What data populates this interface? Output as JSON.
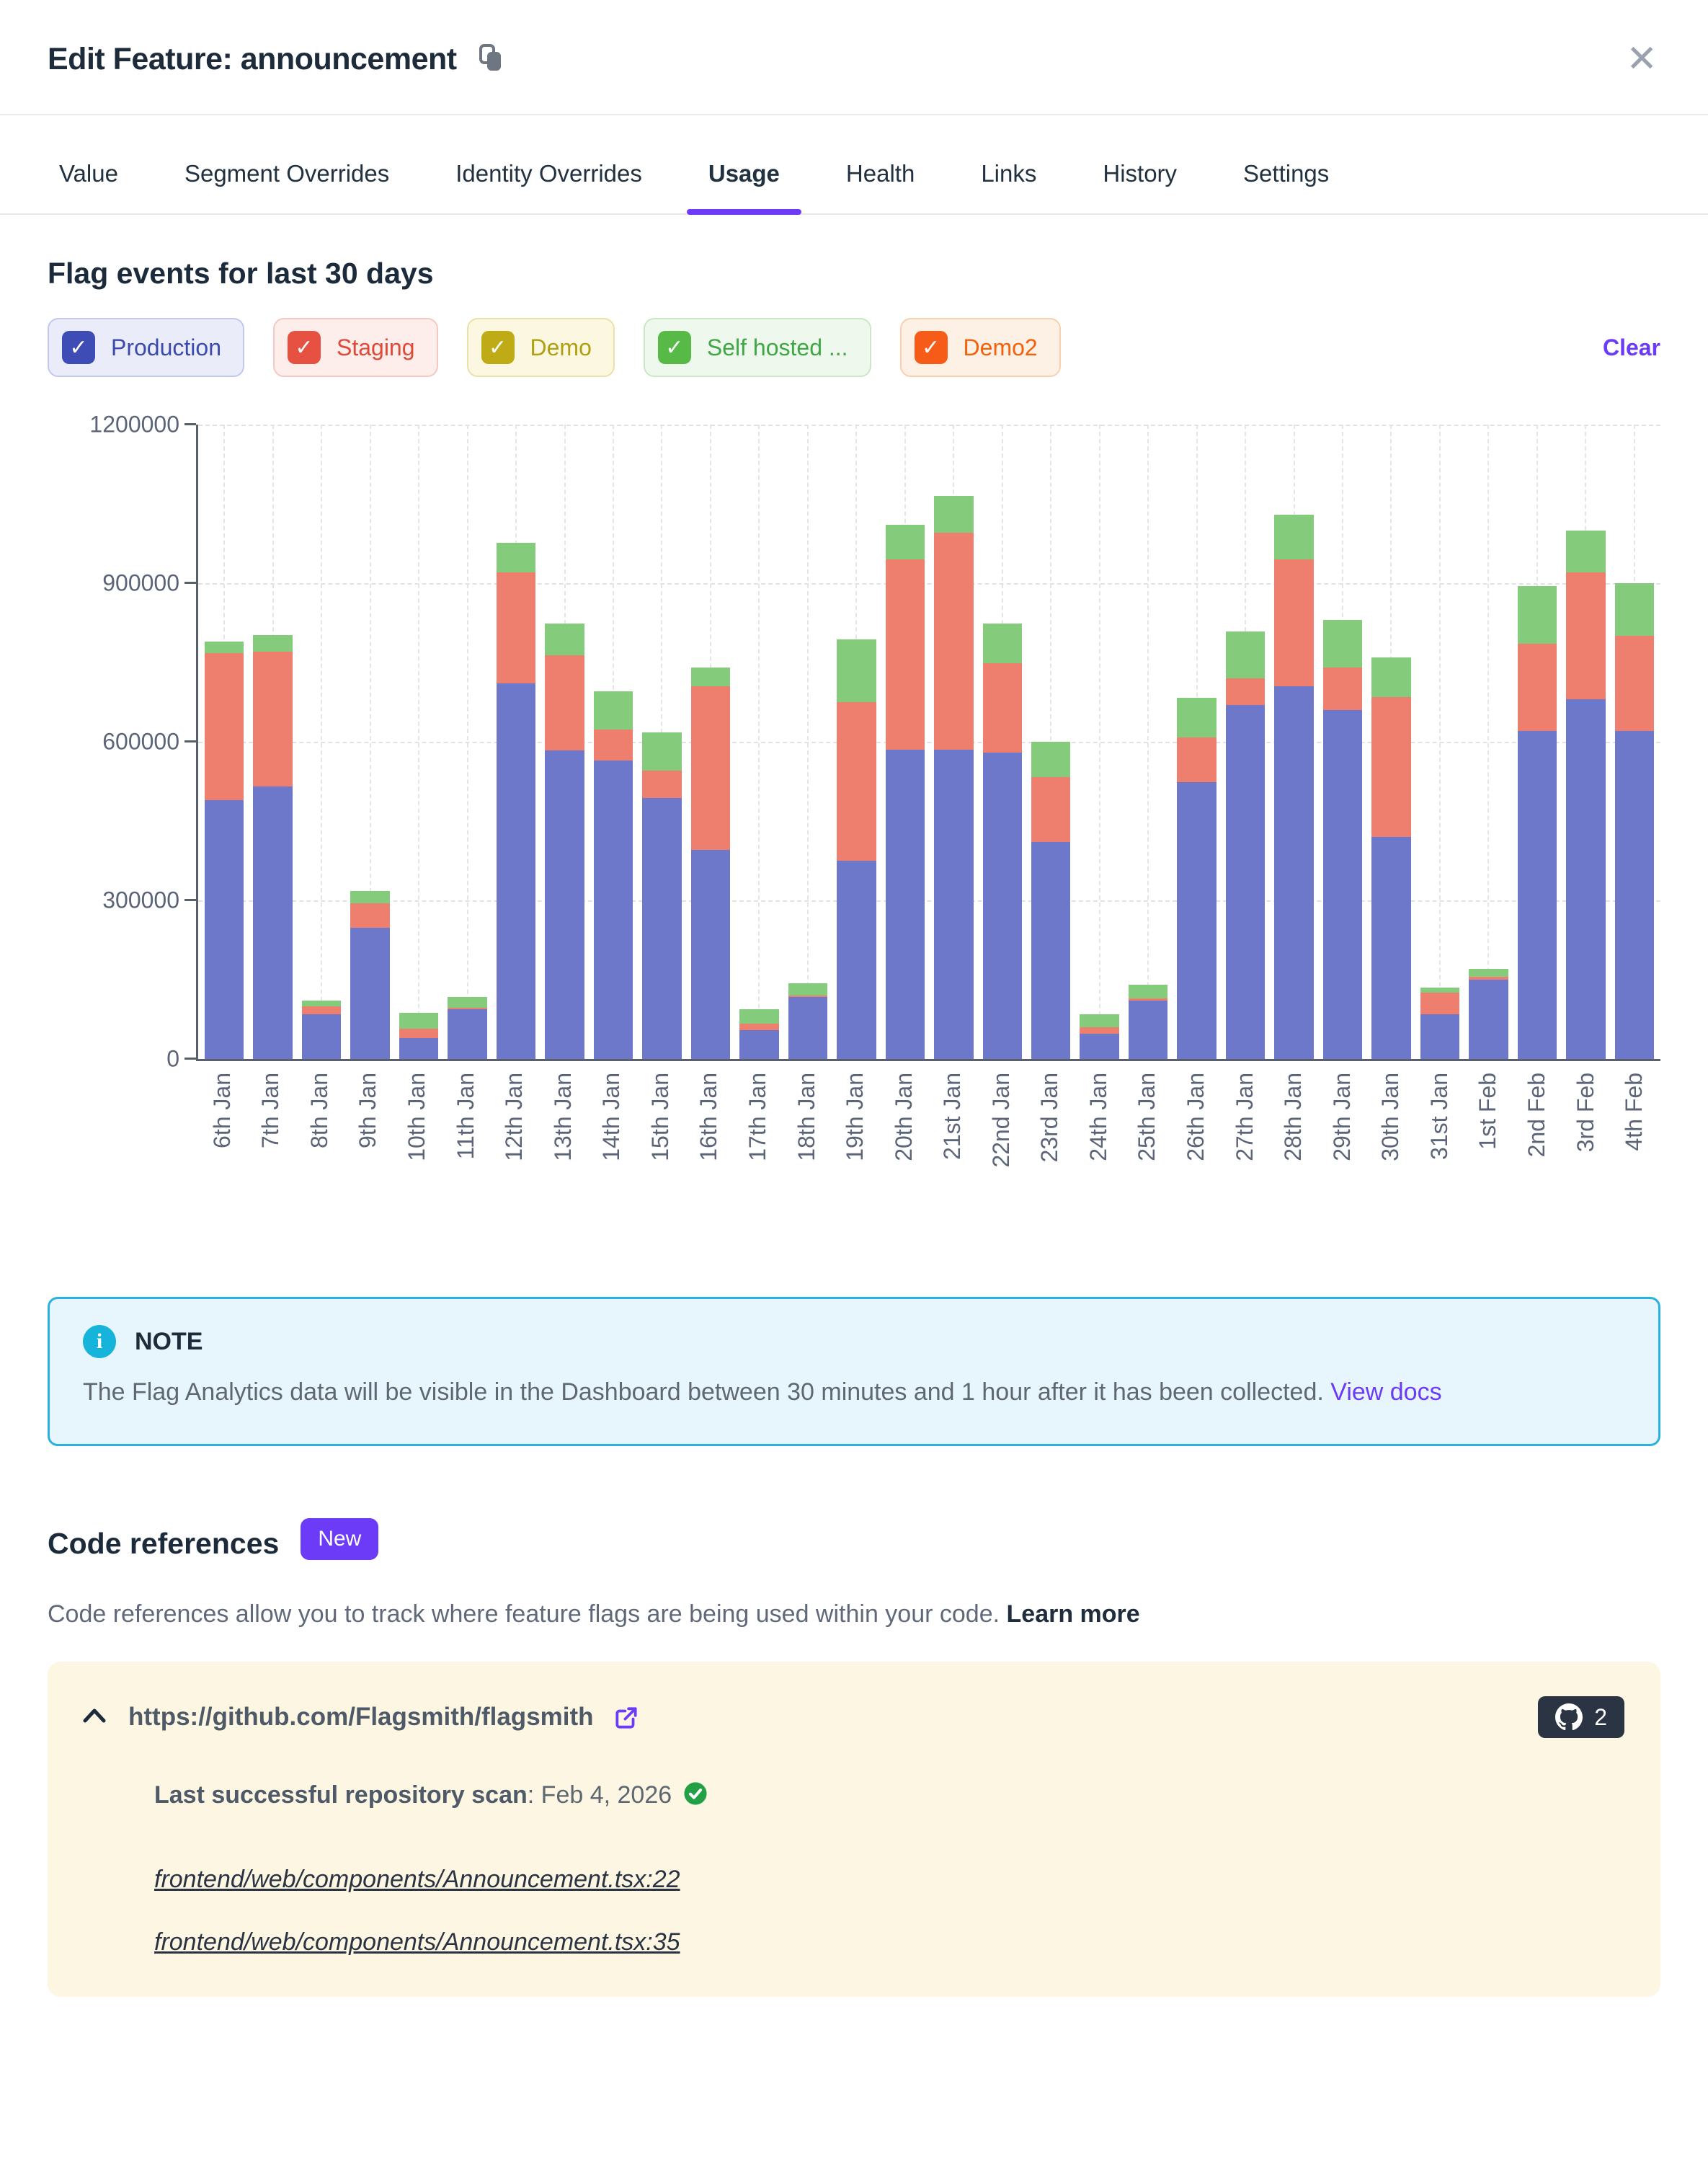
{
  "header": {
    "title": "Edit Feature: announcement"
  },
  "tabs": {
    "active": "Usage",
    "items": [
      {
        "label": "Value"
      },
      {
        "label": "Segment Overrides"
      },
      {
        "label": "Identity Overrides"
      },
      {
        "label": "Usage"
      },
      {
        "label": "Health"
      },
      {
        "label": "Links"
      },
      {
        "label": "History"
      },
      {
        "label": "Settings"
      }
    ]
  },
  "usage": {
    "section_title": "Flag events for last 30 days",
    "clear_label": "Clear",
    "legend": [
      {
        "label": "Production",
        "checked": true,
        "checkbox": "#3d4db5",
        "bg": "#eaecf9",
        "border": "#c2c7ed",
        "text": "#3a4aad"
      },
      {
        "label": "Staging",
        "checked": true,
        "checkbox": "#e65142",
        "bg": "#fdedeb",
        "border": "#f6c8c1",
        "text": "#df4937"
      },
      {
        "label": "Demo",
        "checked": true,
        "checkbox": "#beab16",
        "bg": "#fbf7e1",
        "border": "#e9e1ab",
        "text": "#b0a011"
      },
      {
        "label": "Self hosted ...",
        "checked": true,
        "checkbox": "#57ba46",
        "bg": "#eef8ec",
        "border": "#c9e8c3",
        "text": "#3fa745"
      },
      {
        "label": "Demo2",
        "checked": true,
        "checkbox": "#f65c17",
        "bg": "#fdf0e5",
        "border": "#f9cfad",
        "text": "#f3610c"
      }
    ]
  },
  "chart_data": {
    "type": "bar",
    "stacked": true,
    "title": "Flag events for last 30 days",
    "xlabel": "",
    "ylabel": "",
    "ylim": [
      0,
      1200000
    ],
    "yticks": [
      0,
      300000,
      600000,
      900000,
      1200000
    ],
    "grid": "dashed",
    "legend_position": "above-chart",
    "categories": [
      "6th Jan",
      "7th Jan",
      "8th Jan",
      "9th Jan",
      "10th Jan",
      "11th Jan",
      "12th Jan",
      "13th Jan",
      "14th Jan",
      "15th Jan",
      "16th Jan",
      "17th Jan",
      "18th Jan",
      "19th Jan",
      "20th Jan",
      "21st Jan",
      "22nd Jan",
      "23rd Jan",
      "24th Jan",
      "25th Jan",
      "26th Jan",
      "27th Jan",
      "28th Jan",
      "29th Jan",
      "30th Jan",
      "31st Jan",
      "1st Feb",
      "2nd Feb",
      "3rd Feb",
      "4th Feb"
    ],
    "series": [
      {
        "name": "Production",
        "color": "#6e78cb",
        "values": [
          490000,
          515000,
          84000,
          248000,
          39000,
          94000,
          710000,
          584000,
          564000,
          493000,
          395000,
          54000,
          117000,
          375000,
          585000,
          585000,
          580000,
          410000,
          48000,
          110000,
          524000,
          670000,
          705000,
          660000,
          420000,
          85000,
          150000,
          620000,
          680000,
          620000
        ]
      },
      {
        "name": "Staging",
        "color": "#ee7e6d",
        "values": [
          278000,
          256000,
          15000,
          47000,
          18000,
          3000,
          210000,
          179000,
          59000,
          53000,
          310000,
          13000,
          3000,
          300000,
          360000,
          410000,
          168000,
          123000,
          12000,
          4000,
          84000,
          50000,
          240000,
          80000,
          265000,
          40000,
          5000,
          165000,
          240000,
          180000
        ]
      },
      {
        "name": "Self hosted ...",
        "color": "#84cc7c",
        "values": [
          22000,
          31000,
          12000,
          23000,
          30000,
          21000,
          57000,
          60000,
          72000,
          72000,
          36000,
          27000,
          23000,
          118000,
          65000,
          70000,
          75000,
          67000,
          24000,
          26000,
          75000,
          89000,
          85000,
          90000,
          75000,
          10000,
          15000,
          110000,
          80000,
          100000
        ]
      }
    ]
  },
  "note": {
    "title": "NOTE",
    "text": "The Flag Analytics data will be visible in the Dashboard between 30 minutes and 1 hour after it has been collected. ",
    "link_label": "View docs"
  },
  "code_references": {
    "title": "Code references",
    "badge": "New",
    "description": "Code references allow you to track where feature flags are being used within your code. ",
    "learn_more_label": "Learn more",
    "repo": {
      "url": "https://github.com/Flagsmith/flagsmith",
      "github_count": "2",
      "scan_label": "Last successful repository scan",
      "scan_date": ": Feb 4, 2026",
      "files": [
        "frontend/web/components/Announcement.tsx:22",
        "frontend/web/components/Announcement.tsx:35"
      ]
    }
  },
  "colors": {
    "accent_purple": "#6b3bf7",
    "note_border": "#29b1df",
    "note_bg": "#e7f5fc",
    "card_bg": "#fdf6e2",
    "github_badge_bg": "#2b3442",
    "scan_check_green": "#22a045",
    "axis": "#596069",
    "axis_text": "#5b6577"
  }
}
